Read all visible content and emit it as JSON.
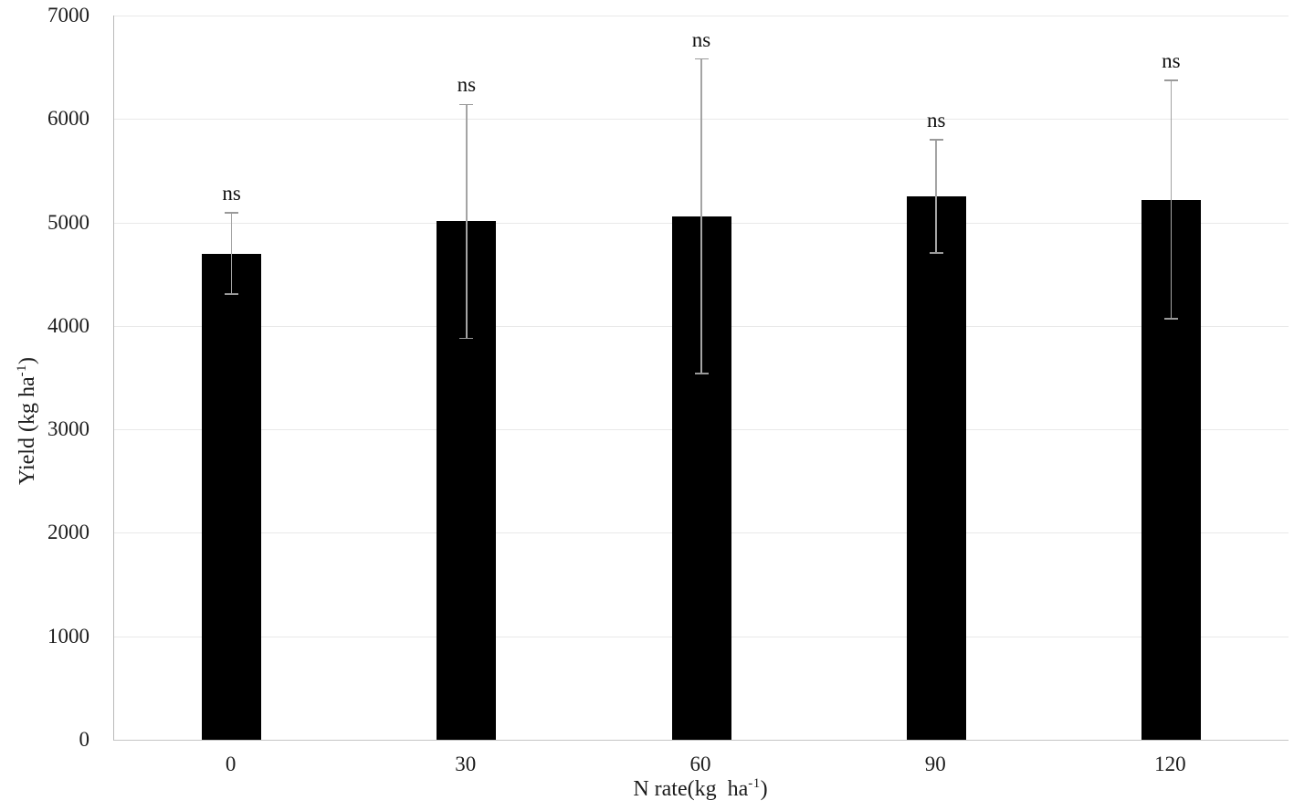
{
  "chart_data": {
    "type": "bar",
    "title": "",
    "categories": [
      "0",
      "30",
      "60",
      "90",
      "120"
    ],
    "values": [
      4700,
      5010,
      5060,
      5250,
      5220
    ],
    "error_bars": [
      395,
      1130,
      1520,
      548,
      1150
    ],
    "annotations": [
      "ns",
      "ns",
      "ns",
      "ns",
      "ns"
    ],
    "yticks": [
      "0",
      "1000",
      "2000",
      "3000",
      "4000",
      "5000",
      "6000",
      "7000"
    ],
    "ylim": [
      0,
      7000
    ],
    "ytick_step": 1000,
    "grid": true,
    "legend_position": "none",
    "xlabel": {
      "main": "N rate(kg  ha",
      "sup": "-1",
      "end": ")"
    },
    "ylabel": {
      "main": "Yield (kg ha",
      "sup": "-1",
      "end": ")"
    },
    "bar_color": "#000000",
    "error_bar_color": "#a4a4a4",
    "gridline_color": "#e9e9e9",
    "axis_line_color": "#bdbdbd",
    "text_color": "#1c1c1c",
    "background_color": "#ffffff"
  }
}
